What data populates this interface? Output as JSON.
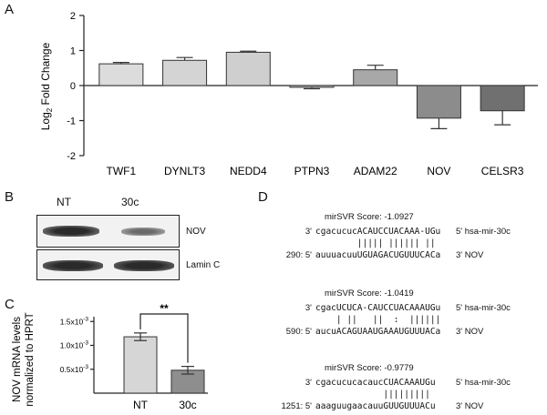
{
  "panels": {
    "a": "A",
    "b": "B",
    "c": "C",
    "d": "D"
  },
  "chart_data": [
    {
      "type": "bar",
      "panel": "A",
      "ylabel": "Log2 Fold Change",
      "ylabel_main": "Log",
      "ylabel_sub": "2",
      "ylabel_rest": " Fold Change",
      "ylim": [
        -2,
        2
      ],
      "yticks": [
        "2",
        "1",
        "0",
        "-1",
        "-2"
      ],
      "ytick_values": [
        2,
        1,
        0,
        -1,
        -2
      ],
      "categories": [
        "TWF1",
        "DYNLT3",
        "NEDD4",
        "PTPN3",
        "ADAM22",
        "NOV",
        "CELSR3"
      ],
      "values": [
        0.62,
        0.72,
        0.95,
        -0.05,
        0.45,
        -0.93,
        -0.72
      ],
      "errors": [
        0.04,
        0.08,
        0.03,
        0.04,
        0.13,
        0.3,
        0.4
      ],
      "colors": [
        "#dcdcdc",
        "#d4d4d4",
        "#cfcfcf",
        "#c0c0c0",
        "#a8a8a8",
        "#8c8c8c",
        "#707070"
      ]
    },
    {
      "type": "bar",
      "panel": "C",
      "ylabel_line1": "NOV mRNA levels",
      "ylabel_line2": "normalized to HPRT",
      "categories": [
        "NT",
        "30c"
      ],
      "values": [
        0.00118,
        0.00048
      ],
      "errors": [
        8e-05,
        8e-05
      ],
      "ylim": [
        0,
        0.0016
      ],
      "yticks": [
        {
          "value": 0.0015,
          "base": "1.5x10",
          "exp": "-3"
        },
        {
          "value": 0.001,
          "base": "1.0x10",
          "exp": "-3"
        },
        {
          "value": 0.0005,
          "base": "0.5x10",
          "exp": "-3"
        }
      ],
      "significance": "**",
      "colors": [
        "#d6d6d6",
        "#8e8e8e"
      ]
    }
  ],
  "blot": {
    "lanes": [
      "NT",
      "30c"
    ],
    "bands": [
      "NOV",
      "Lamin C"
    ]
  },
  "alignments": [
    {
      "score": "mirSVR Score: -1.0927",
      "mirna_prefix": "3'",
      "mirna_seq": "cgacucucACAUCCUACAAA-UGu",
      "mirna_suffix": "5' hsa-mir-30c",
      "pairs": "        ||||| |||||| ||",
      "target_prefix": "290: 5'",
      "target_seq": "auuuacuuUGUAGACUGUUUCACa",
      "target_suffix": "3' NOV"
    },
    {
      "score": "mirSVR Score: -1.0419",
      "mirna_prefix": "3'",
      "mirna_seq": "cgacUCUCA-CAUCCUACAAAUGu",
      "mirna_suffix": "5' hsa-mir-30c",
      "pairs": "    | ||   ||  :  ||||||",
      "target_prefix": "590: 5'",
      "target_seq": "aucuACAGUAAUGAAAUGUUUACa",
      "target_suffix": "3' NOV"
    },
    {
      "score": "mirSVR Score: -0.9779",
      "mirna_prefix": "3'",
      "mirna_seq": "cgacucucacaucCUACAAAUGu",
      "mirna_suffix": "5' hsa-mir-30c",
      "pairs": "             |||||||||",
      "target_prefix": "1251: 5'",
      "target_seq": "aaaguugaacauuGUUGUUUACu",
      "target_suffix": "3' NOV"
    }
  ]
}
